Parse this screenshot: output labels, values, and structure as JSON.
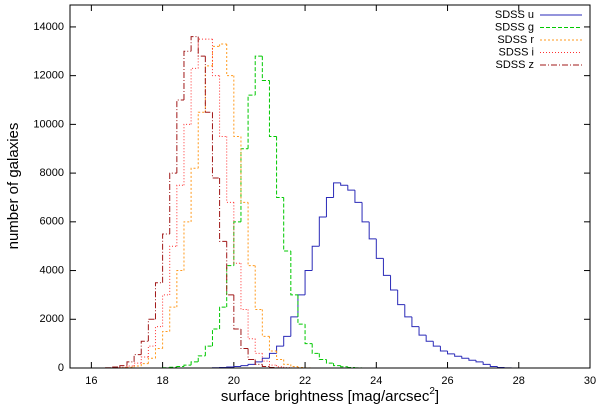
{
  "chart_data": {
    "type": "histogram",
    "x_label": {
      "text": "surface brightness [mag/arcsec",
      "superscript": "2",
      "end": "]"
    },
    "y_label": "number of galaxies",
    "xlim": [
      15.4,
      30
    ],
    "ylim": [
      0,
      14900
    ],
    "xticks": [
      16,
      18,
      20,
      22,
      24,
      26,
      28,
      30
    ],
    "yticks": [
      0,
      2000,
      4000,
      6000,
      8000,
      10000,
      12000,
      14000
    ],
    "legend": "top-right",
    "bins": [
      16.0,
      16.2,
      16.4,
      16.6,
      16.8,
      17.0,
      17.2,
      17.4,
      17.6,
      17.8,
      18.0,
      18.2,
      18.4,
      18.6,
      18.8,
      19.0,
      19.2,
      19.4,
      19.6,
      19.8,
      20.0,
      20.2,
      20.4,
      20.6,
      20.8,
      21.0,
      21.2,
      21.4,
      21.6,
      21.8,
      22.0,
      22.2,
      22.4,
      22.6,
      22.8,
      23.0,
      23.2,
      23.4,
      23.6,
      23.8,
      24.0,
      24.2,
      24.4,
      24.6,
      24.8,
      25.0,
      25.2,
      25.4,
      25.6,
      25.8,
      26.0,
      26.2,
      26.4,
      26.6,
      26.8,
      27.0,
      27.2,
      27.4,
      27.6,
      27.8,
      28.0
    ],
    "series": [
      {
        "name": "SDSS u",
        "color": "#2a2ab8",
        "dash": "none",
        "values": [
          0,
          0,
          0,
          0,
          0,
          0,
          0,
          0,
          0,
          0,
          0,
          0,
          0,
          0,
          0,
          0,
          0,
          10,
          20,
          40,
          60,
          100,
          150,
          250,
          400,
          600,
          900,
          1300,
          2100,
          3000,
          4000,
          5000,
          6200,
          7000,
          7600,
          7500,
          7300,
          6800,
          6000,
          5300,
          4500,
          3800,
          3200,
          2600,
          2100,
          1700,
          1350,
          1100,
          900,
          700,
          580,
          480,
          400,
          320,
          250,
          150,
          60,
          20,
          5,
          0
        ]
      },
      {
        "name": "SDSS g",
        "color": "#00c800",
        "dash": "4 2",
        "values": [
          0,
          0,
          0,
          0,
          0,
          0,
          0,
          0,
          0,
          0,
          10,
          30,
          60,
          120,
          250,
          500,
          900,
          1600,
          2500,
          4200,
          6000,
          9000,
          11200,
          12800,
          11800,
          9500,
          7000,
          4800,
          3000,
          1800,
          1000,
          600,
          350,
          200,
          100,
          50,
          20,
          5,
          0,
          0,
          0,
          0,
          0,
          0,
          0,
          0,
          0,
          0,
          0,
          0,
          0,
          0,
          0,
          0,
          0,
          0,
          0,
          0,
          0,
          0
        ]
      },
      {
        "name": "SDSS r",
        "color": "#ff9a1e",
        "dash": "2 2",
        "values": [
          0,
          0,
          0,
          0,
          10,
          30,
          80,
          180,
          400,
          800,
          1500,
          2500,
          4000,
          6000,
          8200,
          10500,
          12400,
          13200,
          13300,
          12000,
          9500,
          6800,
          4200,
          2400,
          1300,
          700,
          350,
          150,
          60,
          20,
          5,
          0,
          0,
          0,
          0,
          0,
          0,
          0,
          0,
          0,
          0,
          0,
          0,
          0,
          0,
          0,
          0,
          0,
          0,
          0,
          0,
          0,
          0,
          0,
          0,
          0,
          0,
          0,
          0,
          0
        ]
      },
      {
        "name": "SDSS i",
        "color": "#ff3030",
        "dash": "1 2",
        "values": [
          0,
          0,
          0,
          10,
          30,
          80,
          200,
          450,
          900,
          1700,
          3000,
          5000,
          7500,
          10000,
          12300,
          13500,
          13500,
          12000,
          9500,
          6800,
          4300,
          2400,
          1200,
          600,
          280,
          120,
          50,
          15,
          5,
          0,
          0,
          0,
          0,
          0,
          0,
          0,
          0,
          0,
          0,
          0,
          0,
          0,
          0,
          0,
          0,
          0,
          0,
          0,
          0,
          0,
          0,
          0,
          0,
          0,
          0,
          0,
          0,
          0,
          0,
          0
        ]
      },
      {
        "name": "SDSS z",
        "color": "#a01818",
        "dash": "6 2 1 2",
        "values": [
          0,
          0,
          10,
          40,
          100,
          250,
          550,
          1100,
          2000,
          3500,
          5500,
          8000,
          11000,
          13000,
          13600,
          12800,
          10500,
          7800,
          5200,
          3000,
          1600,
          800,
          350,
          150,
          60,
          20,
          5,
          0,
          0,
          0,
          0,
          0,
          0,
          0,
          0,
          0,
          0,
          0,
          0,
          0,
          0,
          0,
          0,
          0,
          0,
          0,
          0,
          0,
          0,
          0,
          0,
          0,
          0,
          0,
          0,
          0,
          0,
          0,
          0,
          0
        ]
      }
    ]
  }
}
